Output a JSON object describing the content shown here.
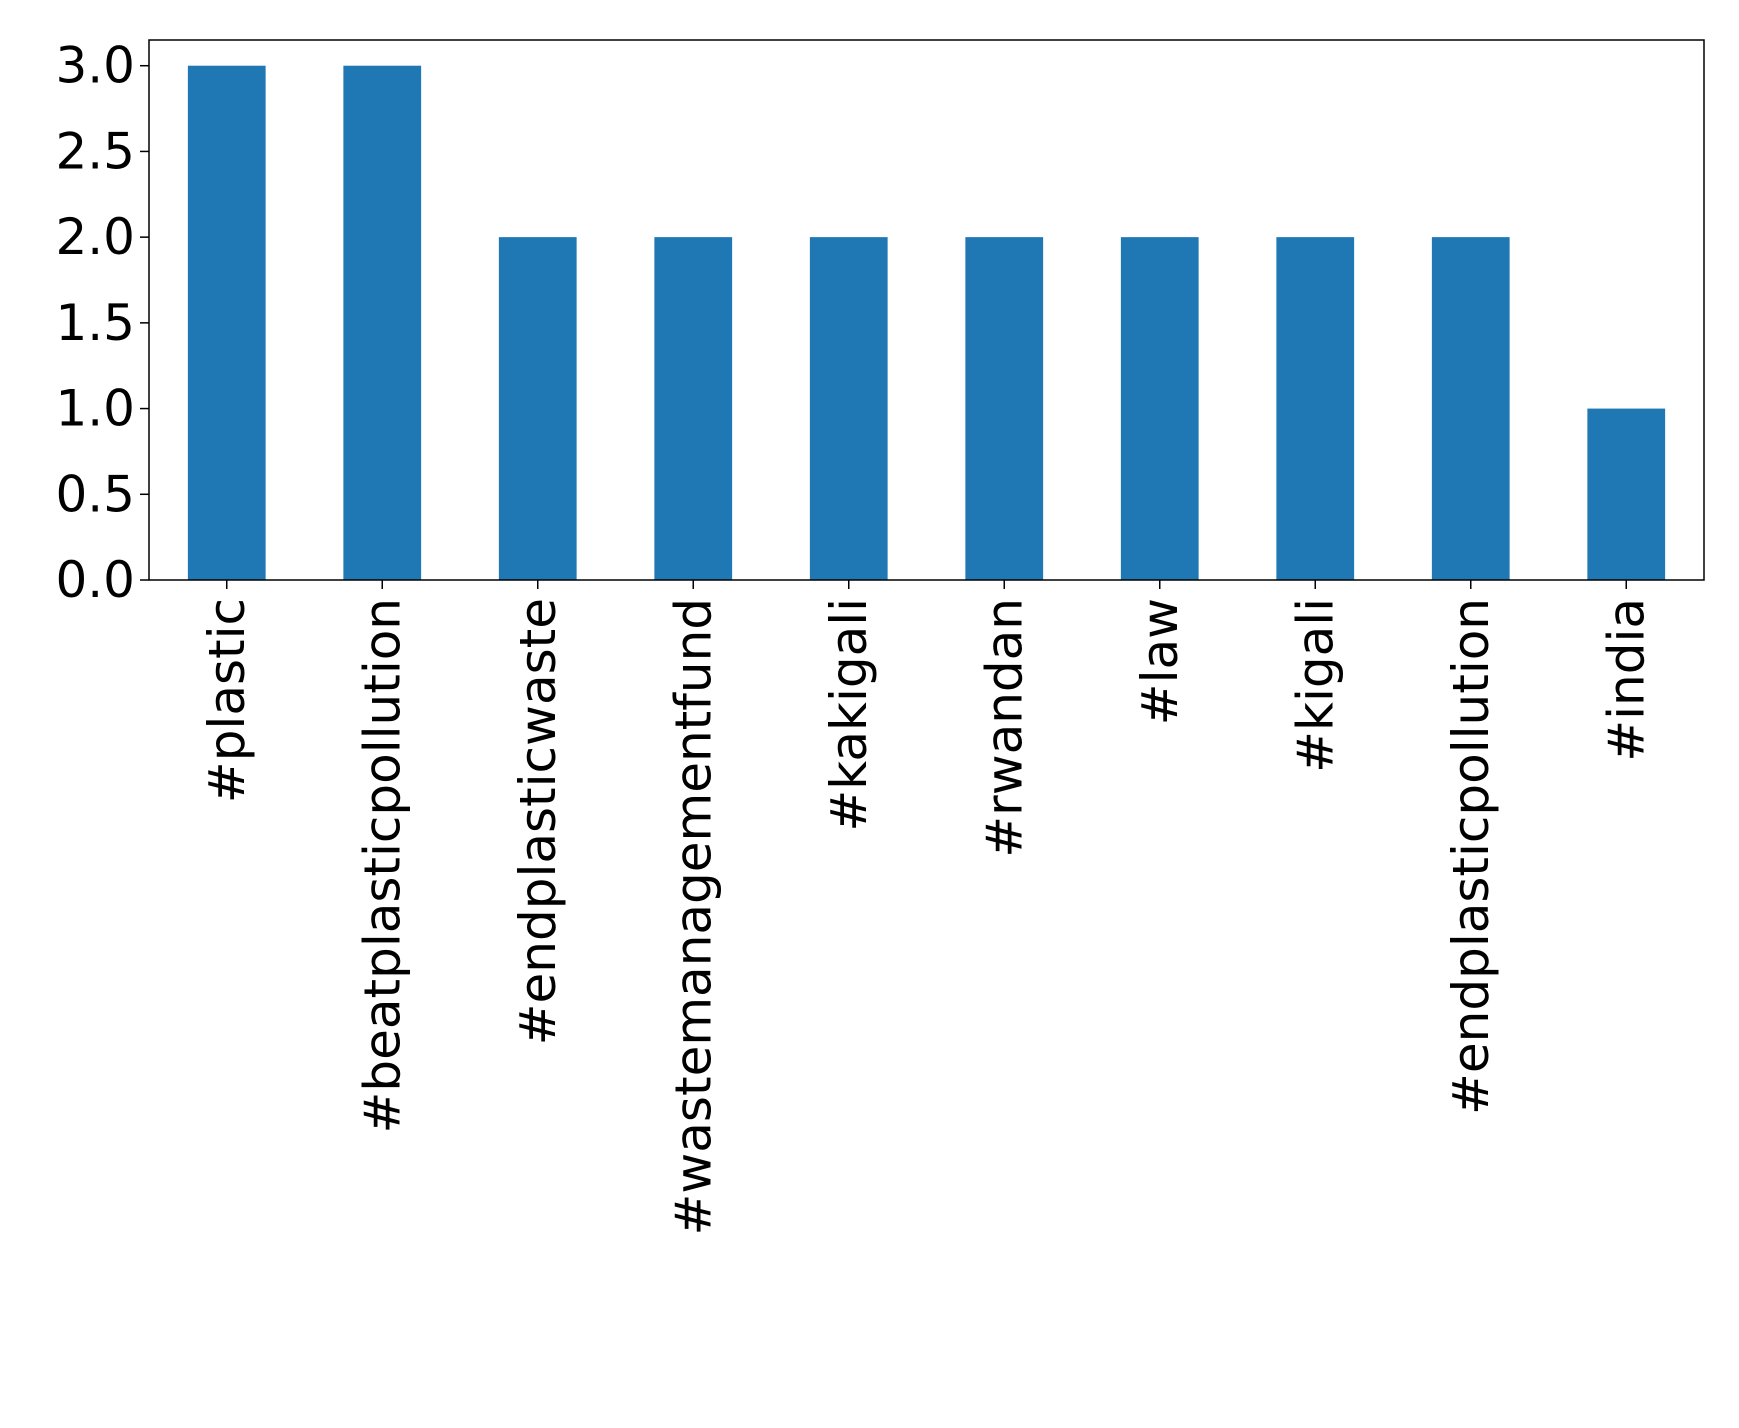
{
  "chart_data": {
    "type": "bar",
    "title": "",
    "xlabel": "",
    "ylabel": "",
    "categories": [
      "#plastic",
      "#beatplasticpollution",
      "#endplasticwaste",
      "#wastemanagementfund",
      "#kakigali",
      "#rwandan",
      "#law",
      "#kigali",
      "#endplasticpollution",
      "#india"
    ],
    "values": [
      3,
      3,
      2,
      2,
      2,
      2,
      2,
      2,
      2,
      1
    ],
    "ylim": [
      0,
      3.15
    ],
    "yticks": [
      "0.0",
      "0.5",
      "1.0",
      "1.5",
      "2.0",
      "2.5",
      "3.0"
    ],
    "bar_color": "#1f77b4",
    "grid": false,
    "legend": "none"
  }
}
